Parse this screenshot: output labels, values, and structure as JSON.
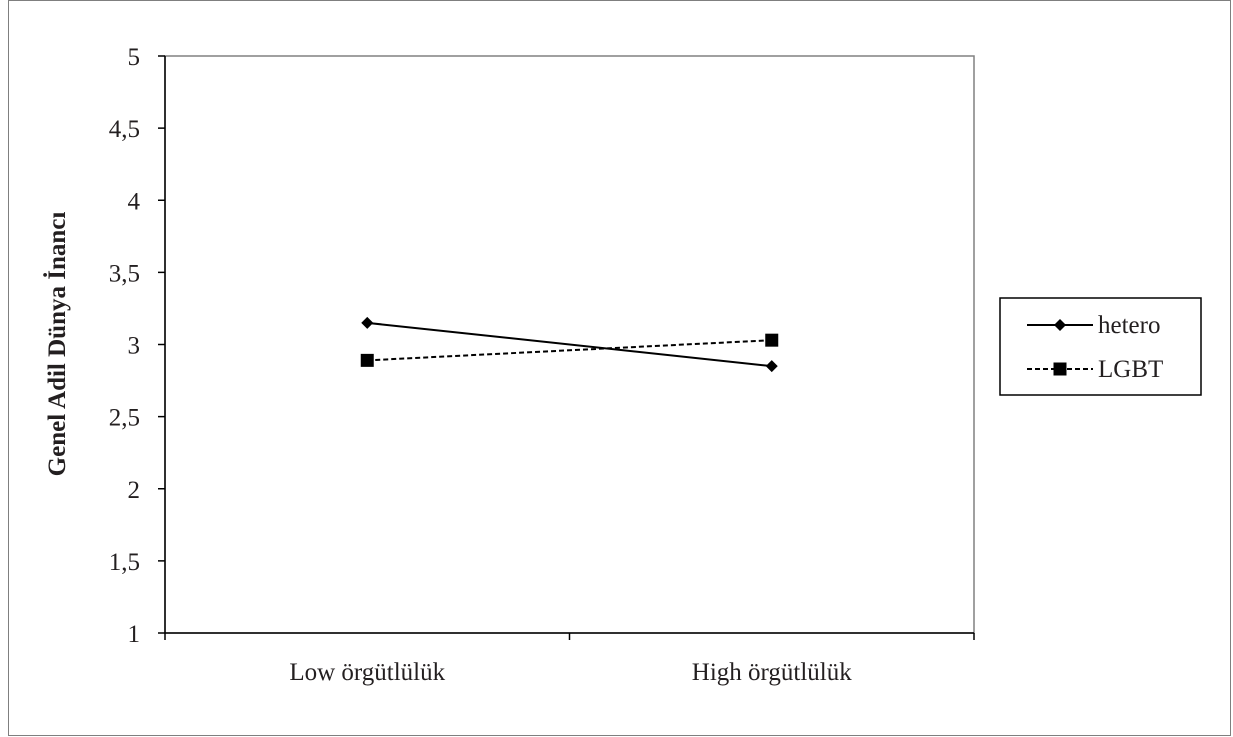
{
  "chart_data": {
    "type": "line",
    "title": "",
    "xlabel": "",
    "ylabel": "Genel Adil Dünya İnancı",
    "categories": [
      "Low örgütlülük",
      "High örgütlülük"
    ],
    "ylim": [
      1,
      5
    ],
    "yticks": [
      "1",
      "1,5",
      "2",
      "2,5",
      "3",
      "3,5",
      "4",
      "4,5",
      "5"
    ],
    "grid": false,
    "legend_position": "right",
    "series": [
      {
        "name": "hetero",
        "values": [
          3.15,
          2.85
        ],
        "marker": "diamond",
        "line_style": "solid",
        "color": "#000000"
      },
      {
        "name": "LGBT",
        "values": [
          2.89,
          3.03
        ],
        "marker": "square",
        "line_style": "dashed",
        "color": "#000000"
      }
    ]
  }
}
